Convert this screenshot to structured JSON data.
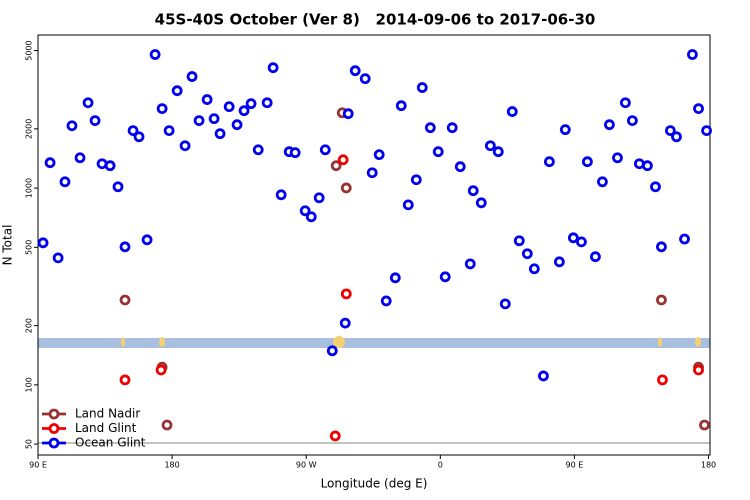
{
  "chart_data": {
    "type": "scatter",
    "title": "45S-40S October (Ver 8)   2014-09-06 to 2017-06-30",
    "xlabel": "Longitude (deg E)",
    "ylabel": "N Total",
    "xlim": [
      90,
      541
    ],
    "ylim": [
      44,
      6000
    ],
    "ylog": true,
    "legend": "lower left",
    "xticks": [
      {
        "value": 90,
        "label": "90 E"
      },
      {
        "value": 180,
        "label": "180"
      },
      {
        "value": 270,
        "label": "90 W"
      },
      {
        "value": 360,
        "label": "0"
      },
      {
        "value": 450,
        "label": "90 E"
      },
      {
        "value": 540,
        "label": "180"
      }
    ],
    "yticks": [
      50,
      100,
      200,
      500,
      1000,
      2000,
      5000
    ],
    "series": [
      {
        "name": "Land Nadir",
        "color": "#993333",
        "x": [
          148.4,
          173.3,
          176.6,
          290.1,
          294.2,
          296.9,
          508.4,
          533.3,
          537.3
        ],
        "values": [
          270,
          123,
          62.5,
          1300,
          2415,
          1002,
          270,
          123,
          62.5
        ]
      },
      {
        "name": "Land Glint",
        "color": "#ee0000",
        "x": [
          148.4,
          172.6,
          289.5,
          294.8,
          296.9,
          509.1,
          533.3
        ],
        "values": [
          106,
          119,
          55,
          1393,
          290,
          106,
          119
        ]
      },
      {
        "name": "Ocean Glint",
        "color": "#0000ee",
        "x": [
          93.4,
          98.1,
          103.5,
          108.1,
          112.8,
          118.2,
          123.6,
          128.3,
          133,
          138.4,
          143.7,
          148.4,
          153.8,
          157.8,
          163.2,
          168.6,
          173.3,
          178,
          183.4,
          188.7,
          193.4,
          198.1,
          203.5,
          208.2,
          212.2,
          218.3,
          223.6,
          228.3,
          233,
          237.8,
          243.8,
          247.8,
          253.2,
          258.6,
          262.6,
          269.3,
          273.4,
          278.7,
          282.8,
          287.5,
          296.2,
          298.2,
          302.9,
          309.6,
          314.3,
          319,
          323.7,
          329.8,
          333.8,
          338.5,
          343.9,
          347.9,
          353.3,
          358.6,
          363.3,
          368,
          373.4,
          380.1,
          382.1,
          387.5,
          393.6,
          398.9,
          403.6,
          408.3,
          413,
          418.4,
          423.1,
          429.2,
          433.2,
          439.9,
          443.9,
          449.3,
          454.7,
          458.7,
          464.1,
          468.8,
          473.5,
          478.9,
          484.2,
          488.9,
          493.6,
          499,
          504.4,
          508.4,
          514.4,
          518.5,
          523.9,
          529.2,
          533.3,
          538.7
        ],
        "values": [
          527,
          1346,
          442,
          1077,
          2075,
          1426,
          2716,
          2203,
          1330,
          1300,
          1016,
          503,
          1960,
          1824,
          546,
          4775,
          2535,
          1960,
          3126,
          1642,
          3690,
          2203,
          2818,
          2254,
          1891,
          2594,
          2100,
          2475,
          2687,
          1566,
          2716,
          4093,
          925,
          1531,
          1514,
          767,
          715,
          893,
          1566,
          149,
          206,
          2389,
          3952,
          3600,
          1197,
          1479,
          267,
          350,
          2624,
          822,
          1103,
          3243,
          2028,
          1531,
          354,
          2028,
          1285,
          412,
          970,
          842,
          1642,
          1531,
          258,
          2449,
          540,
          464,
          389,
          111,
          1362,
          422,
          1982,
          559,
          533,
          1362,
          448,
          1077,
          2100,
          1426,
          2716,
          2203,
          1330,
          1300,
          1016,
          503,
          1960,
          1824,
          551,
          4775,
          2535,
          1960
        ]
      }
    ]
  }
}
